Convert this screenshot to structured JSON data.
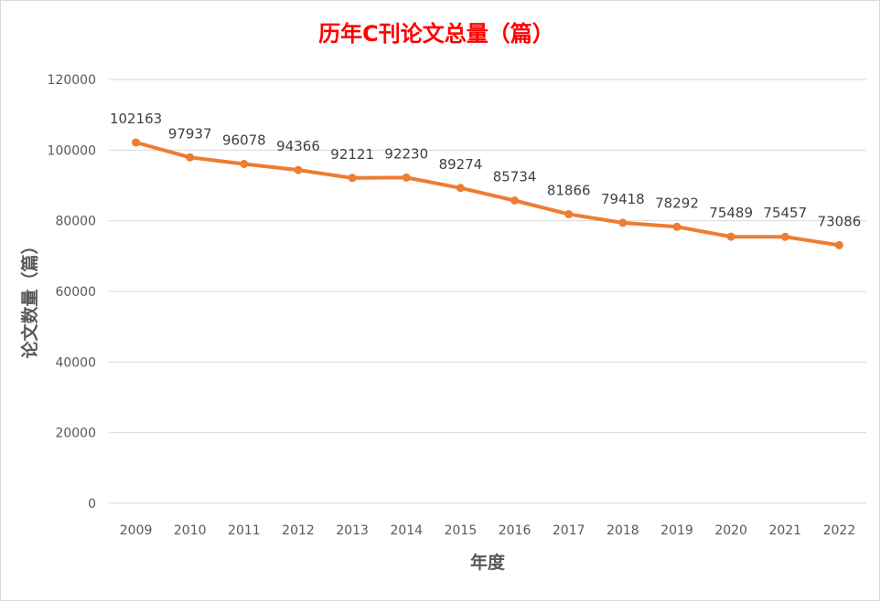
{
  "chart_data": {
    "type": "line",
    "title": "历年C刊论文总量（篇）",
    "xlabel": "年度",
    "ylabel": "论文数量（篇）",
    "categories": [
      "2009",
      "2010",
      "2011",
      "2012",
      "2013",
      "2014",
      "2015",
      "2016",
      "2017",
      "2018",
      "2019",
      "2020",
      "2021",
      "2022"
    ],
    "series": [
      {
        "values": [
          102163,
          97937,
          96078,
          94366,
          92121,
          92230,
          89274,
          85734,
          81866,
          79418,
          78292,
          75489,
          75457,
          73086
        ]
      }
    ],
    "ylim": [
      0,
      120000
    ],
    "yticks": [
      "0",
      "20000",
      "40000",
      "60000",
      "80000",
      "100000",
      "120000"
    ],
    "grid": true,
    "legend": "none",
    "data_labels": true,
    "line_color": "#ED7D31",
    "title_color": "#FF0000"
  }
}
